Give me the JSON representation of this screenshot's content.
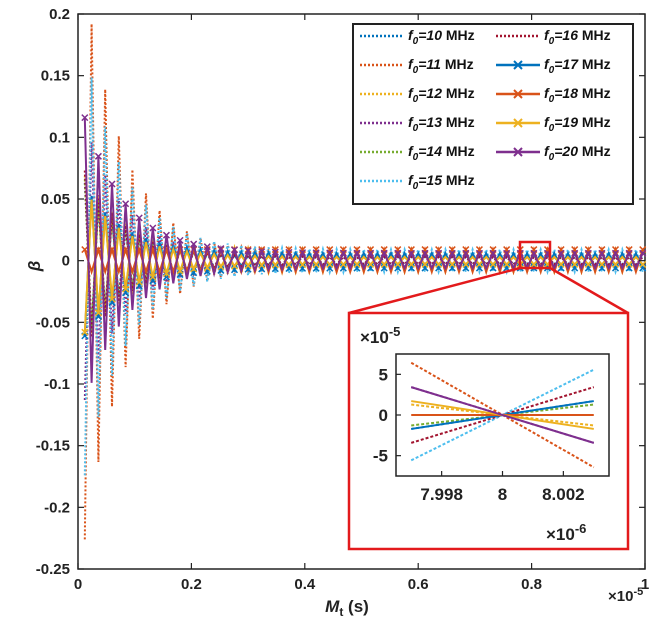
{
  "chart_data": {
    "type": "line",
    "xlabel_main": "M",
    "xlabel_sub": "t",
    "xlabel_unit": " (s)",
    "ylabel": "β",
    "xlim": [
      0,
      1
    ],
    "ylim": [
      -0.25,
      0.2
    ],
    "x_exponent": "×10",
    "x_exponent_power": "-5",
    "x_ticks": [
      "0",
      "0.2",
      "0.4",
      "0.6",
      "0.8",
      "1"
    ],
    "y_ticks": [
      "0.2",
      "0.15",
      "0.1",
      "0.05",
      "0",
      "-0.05",
      "-0.1",
      "-0.15",
      "-0.2",
      "-0.25"
    ],
    "legend_placement": "top-right",
    "series": [
      {
        "f_label": "f",
        "f_sub": "0",
        "f_value": "=10",
        "unit": " MHz",
        "color": "#0072BD",
        "style": "dotted",
        "amp0": 0.06,
        "slope": 0.2
      },
      {
        "f_label": "f",
        "f_sub": "0",
        "f_value": "=11",
        "unit": " MHz",
        "color": "#D95319",
        "style": "dotted",
        "amp0": 0.22,
        "slope": -0.75
      },
      {
        "f_label": "f",
        "f_sub": "0",
        "f_value": "=12",
        "unit": " MHz",
        "color": "#EDB120",
        "style": "dotted",
        "amp0": 0.06,
        "slope": -0.15
      },
      {
        "f_label": "f",
        "f_sub": "0",
        "f_value": "=13",
        "unit": " MHz",
        "color": "#7E2F8E",
        "style": "dotted",
        "amp0": 0.11,
        "slope": -0.4
      },
      {
        "f_label": "f",
        "f_sub": "0",
        "f_value": "=14",
        "unit": " MHz",
        "color": "#77AC30",
        "style": "dotted",
        "amp0": 0.06,
        "slope": 0.15
      },
      {
        "f_label": "f",
        "f_sub": "0",
        "f_value": "=15",
        "unit": " MHz",
        "color": "#4DBEEE",
        "style": "dotted",
        "amp0": 0.165,
        "slope": 0.65
      },
      {
        "f_label": "f",
        "f_sub": "0",
        "f_value": "=16",
        "unit": " MHz",
        "color": "#A2142F",
        "style": "dotted",
        "amp0": 0.07,
        "slope": 0.4
      },
      {
        "f_label": "f",
        "f_sub": "0",
        "f_value": "=17",
        "unit": " MHz",
        "color": "#0072BD",
        "style": "solid-x",
        "amp0": 0.055,
        "slope": 0.2
      },
      {
        "f_label": "f",
        "f_sub": "0",
        "f_value": "=18",
        "unit": " MHz",
        "color": "#D95319",
        "style": "solid-x",
        "amp0": 0.0,
        "slope": 0.0
      },
      {
        "f_label": "f",
        "f_sub": "0",
        "f_value": "=19",
        "unit": " MHz",
        "color": "#EDB120",
        "style": "solid-x",
        "amp0": 0.055,
        "slope": -0.2
      },
      {
        "f_label": "f",
        "f_sub": "0",
        "f_value": "=20",
        "unit": " MHz",
        "color": "#7E2F8E",
        "style": "solid-x",
        "amp0": 0.11,
        "slope": -0.4
      }
    ],
    "inset": {
      "xlim": [
        7.9965,
        8.0035
      ],
      "ylim": [
        -7.5,
        7.5
      ],
      "x_ticks": [
        "7.998",
        "8",
        "8.002"
      ],
      "y_ticks": [
        "5",
        "0",
        "-5"
      ],
      "y_exponent": "×10",
      "y_exponent_power": "-5",
      "x_exponent": "×10",
      "x_exponent_power": "-6",
      "highlight_color": "#E31A1C"
    }
  }
}
